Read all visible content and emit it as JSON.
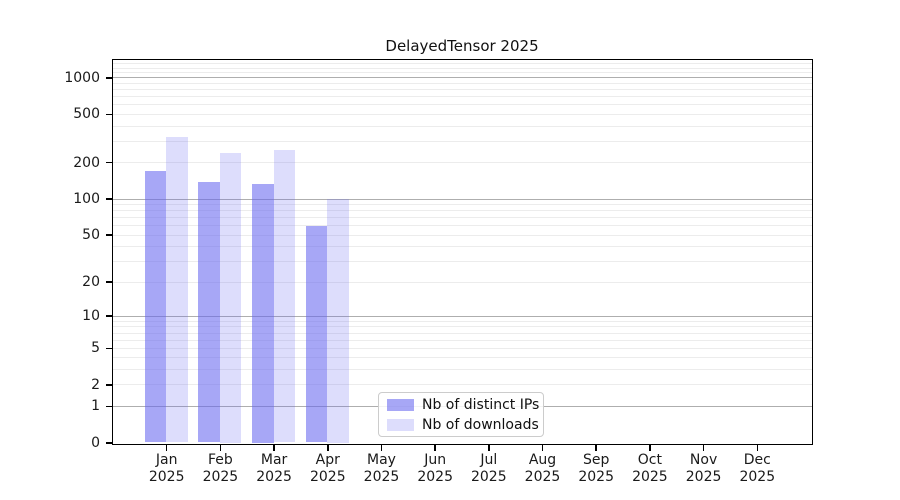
{
  "title": "DelayedTensor 2025",
  "chart_data": {
    "type": "bar",
    "title": "DelayedTensor 2025",
    "year_label": "2025",
    "categories": [
      "Jan",
      "Feb",
      "Mar",
      "Apr",
      "May",
      "Jun",
      "Jul",
      "Aug",
      "Sep",
      "Oct",
      "Nov",
      "Dec"
    ],
    "series": [
      {
        "name": "Nb of distinct IPs",
        "color": "rgba(100,100,240,0.57)",
        "approx_hex": "#a9a9f5",
        "values": [
          170,
          136,
          132,
          59,
          0,
          0,
          0,
          0,
          0,
          0,
          0,
          0
        ]
      },
      {
        "name": "Nb of downloads",
        "color": "rgba(100,100,240,0.22)",
        "approx_hex": "#dcdcf8",
        "values": [
          320,
          240,
          250,
          100,
          0,
          0,
          0,
          0,
          0,
          0,
          0,
          0
        ]
      }
    ],
    "y_ticks": [
      0,
      1,
      2,
      5,
      10,
      20,
      50,
      100,
      200,
      500,
      1000
    ],
    "y_scale": "log1p",
    "ylim": [
      0,
      1400
    ],
    "xlabel": "",
    "ylabel": "",
    "grid": true,
    "legend_position": "bottom-center"
  },
  "legend": {
    "items": [
      {
        "label": "Nb of distinct IPs",
        "color": "rgba(100,100,240,0.57)"
      },
      {
        "label": "Nb of downloads",
        "color": "rgba(100,100,240,0.22)"
      }
    ]
  },
  "colors": {
    "bar_distinct_ips": "#a9a9f5",
    "bar_downloads": "#dcdcf8",
    "grid_major": "#aeaeae",
    "grid_minor": "#ececec",
    "axis": "#000000",
    "background": "#ffffff",
    "legend_border": "#cccccc"
  }
}
